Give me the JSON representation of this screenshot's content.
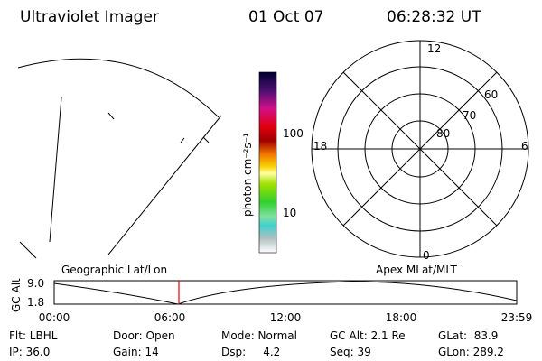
{
  "header": {
    "instrument": "Ultraviolet Imager",
    "date": "01 Oct 07",
    "time": "06:28:32 UT"
  },
  "colorbar": {
    "label": "photon cm⁻²s⁻¹",
    "ticks": [
      "100",
      "10"
    ]
  },
  "polar": {
    "mlt_labels": [
      "12",
      "6",
      "18",
      "0"
    ],
    "lat_labels": [
      "80",
      "70",
      "60"
    ]
  },
  "orbit": {
    "axis_label": "GC Alt",
    "y_labels": [
      "9.0",
      "1.8"
    ],
    "left_title": "Geographic Lat/Lon",
    "right_title": "Apex MLat/MLT",
    "time_labels": [
      "00:00",
      "06:00",
      "12:00",
      "18:00",
      "23:59"
    ]
  },
  "info": {
    "rows": [
      [
        "Flt: LBHL",
        "Door: Open",
        "Mode: Normal",
        "GC Alt: 2.1 Re",
        "GLat:  83.9"
      ],
      [
        "IP: 36.0",
        "Gain: 14",
        "Dsp:     4.2",
        "Seq: 39",
        "GLon: 289.2"
      ]
    ]
  }
}
